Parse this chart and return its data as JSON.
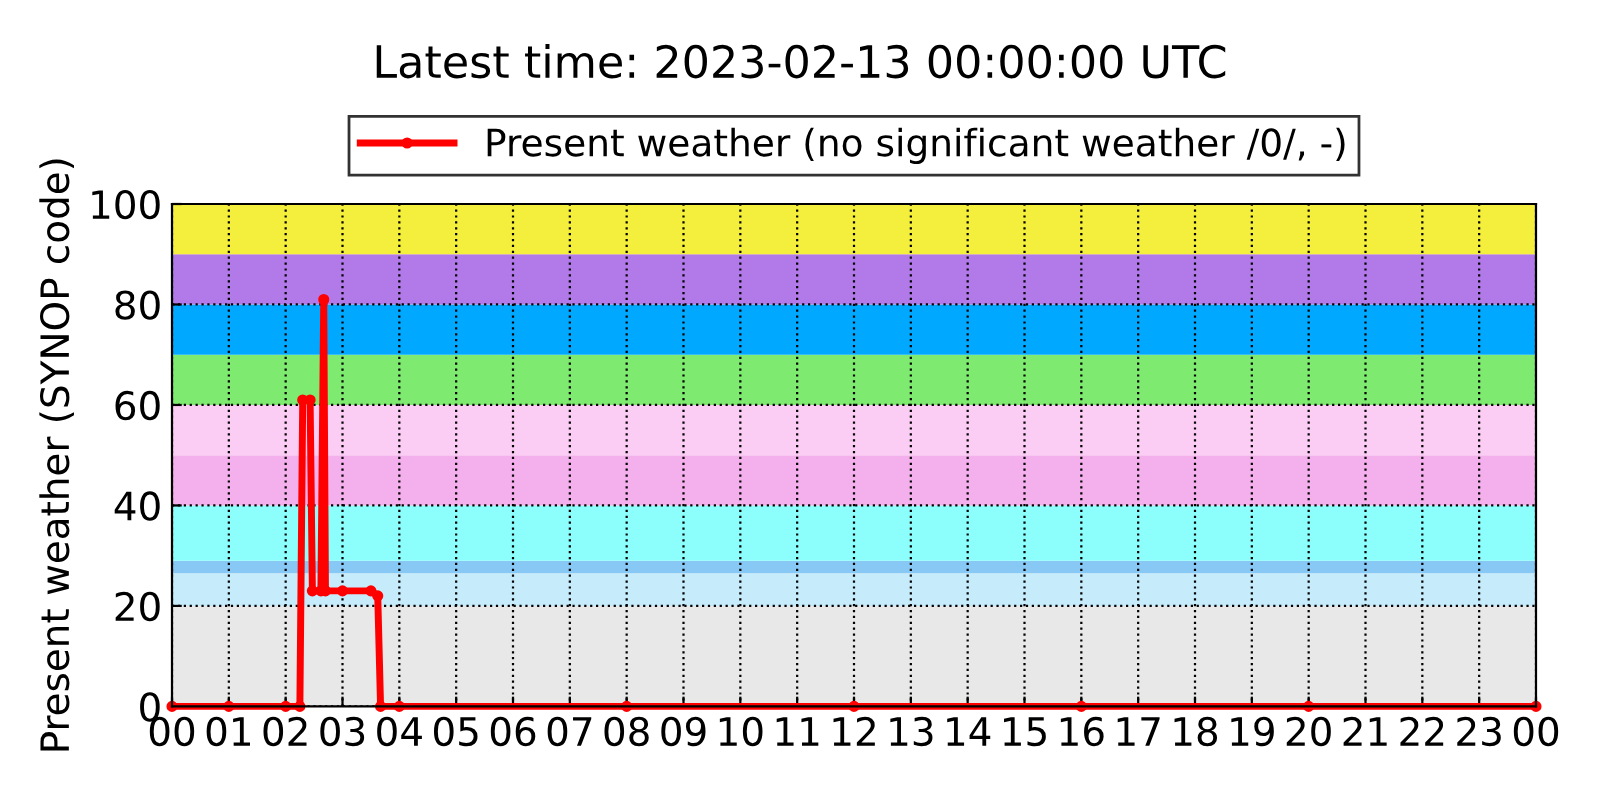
{
  "chart_data": {
    "type": "line",
    "title": "Latest time: 2023-02-13 00:00:00 UTC",
    "ylabel": "Present weather (SYNOP code)",
    "x": [
      0,
      1,
      2,
      2.25,
      2.3,
      2.43,
      2.47,
      2.62,
      2.67,
      2.7,
      3.0,
      3.5,
      3.62,
      3.67,
      4,
      8,
      12,
      16,
      20,
      24
    ],
    "series": [
      {
        "name": "Present weather (no significant weather /0/, -)",
        "color": "#ff0000",
        "values": [
          0,
          0,
          0,
          0,
          61,
          61,
          23,
          23,
          81,
          23,
          23,
          23,
          22,
          0,
          0,
          0,
          0,
          0,
          0,
          0
        ]
      }
    ],
    "xlim": [
      0,
      24
    ],
    "xticks": [
      {
        "value": 0,
        "label": "00"
      },
      {
        "value": 1,
        "label": "01"
      },
      {
        "value": 2,
        "label": "02"
      },
      {
        "value": 3,
        "label": "03"
      },
      {
        "value": 4,
        "label": "04"
      },
      {
        "value": 5,
        "label": "05"
      },
      {
        "value": 6,
        "label": "06"
      },
      {
        "value": 7,
        "label": "07"
      },
      {
        "value": 8,
        "label": "08"
      },
      {
        "value": 9,
        "label": "09"
      },
      {
        "value": 10,
        "label": "10"
      },
      {
        "value": 11,
        "label": "11"
      },
      {
        "value": 12,
        "label": "12"
      },
      {
        "value": 13,
        "label": "13"
      },
      {
        "value": 14,
        "label": "14"
      },
      {
        "value": 15,
        "label": "15"
      },
      {
        "value": 16,
        "label": "16"
      },
      {
        "value": 17,
        "label": "17"
      },
      {
        "value": 18,
        "label": "18"
      },
      {
        "value": 19,
        "label": "19"
      },
      {
        "value": 20,
        "label": "20"
      },
      {
        "value": 21,
        "label": "21"
      },
      {
        "value": 22,
        "label": "22"
      },
      {
        "value": 23,
        "label": "23"
      },
      {
        "value": 24,
        "label": "00"
      }
    ],
    "ylim": [
      0,
      100
    ],
    "yticks": [
      0,
      20,
      40,
      60,
      80,
      100
    ],
    "bands": [
      {
        "axis": "y",
        "from": 0,
        "to": 20,
        "color": "#e8e8e8"
      },
      {
        "axis": "y",
        "from": 20,
        "to": 26.5,
        "color": "#c6ecfc"
      },
      {
        "axis": "y",
        "from": 26.5,
        "to": 29,
        "color": "#88c8f4"
      },
      {
        "axis": "y",
        "from": 29,
        "to": 40,
        "color": "#8cfffc"
      },
      {
        "axis": "y",
        "from": 40,
        "to": 50,
        "color": "#f4b0ec"
      },
      {
        "axis": "y",
        "from": 50,
        "to": 60,
        "color": "#fccdf4"
      },
      {
        "axis": "y",
        "from": 60,
        "to": 70,
        "color": "#7eea70"
      },
      {
        "axis": "y",
        "from": 70,
        "to": 80,
        "color": "#00a8ff"
      },
      {
        "axis": "y",
        "from": 80,
        "to": 90,
        "color": "#b27ae8"
      },
      {
        "axis": "y",
        "from": 90,
        "to": 100,
        "color": "#f4ee3c"
      }
    ],
    "grid": true,
    "legend": "top",
    "marker": "circle",
    "line_style": "solid"
  }
}
